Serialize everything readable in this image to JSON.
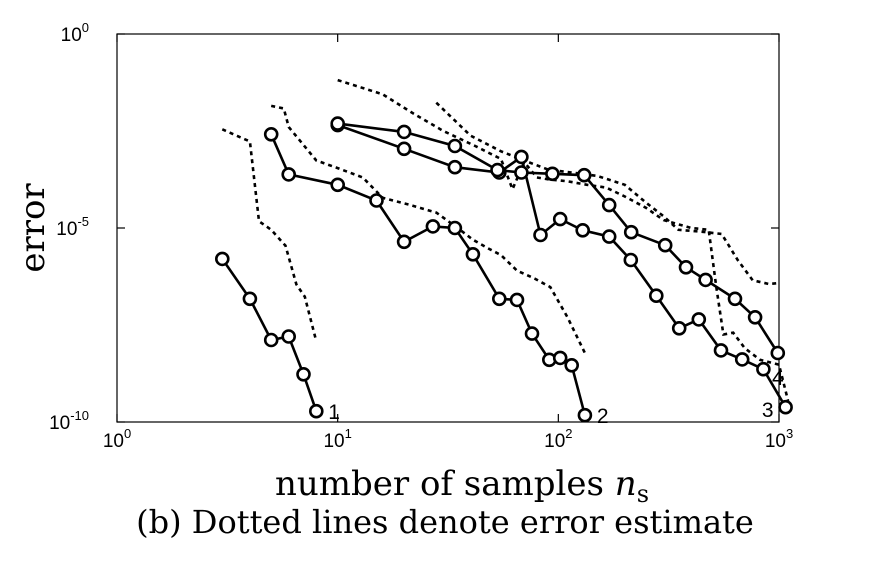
{
  "chart_data": {
    "type": "line",
    "x_scale": "log",
    "y_scale": "log",
    "xlim": [
      1,
      1000
    ],
    "ylim": [
      1e-10,
      1
    ],
    "xlabel": "number of samples",
    "xlabel_symbol": "n",
    "xlabel_subscript": "s",
    "ylabel": "error",
    "caption": "(b) Dotted lines denote error estimate",
    "grid": false,
    "x_ticks": [
      {
        "base": "10",
        "exp": "0",
        "value": 1
      },
      {
        "base": "10",
        "exp": "1",
        "value": 10
      },
      {
        "base": "10",
        "exp": "2",
        "value": 100
      },
      {
        "base": "10",
        "exp": "3",
        "value": 1000
      }
    ],
    "y_ticks": [
      {
        "base": "10",
        "exp": "0",
        "value": 1
      },
      {
        "base": "10",
        "exp": "-5",
        "value": 1e-05
      },
      {
        "base": "10",
        "exp": "-10",
        "value": 1e-10
      }
    ],
    "series": [
      {
        "label": "1",
        "error": {
          "x": [
            3,
            4,
            5,
            6,
            7,
            8
          ],
          "y": [
            1.6e-06,
            1.5e-07,
            1.3e-08,
            1.6e-08,
            1.7e-09,
            1.9e-10
          ]
        },
        "estimate": {
          "x": [
            3,
            4,
            4.4,
            5,
            5.8,
            6.5,
            7.1,
            8
          ],
          "y": [
            0.0035,
            0.0017,
            1.5e-05,
            9e-06,
            3.5e-06,
            3.5e-07,
            1.7e-07,
            1.2e-08
          ]
        }
      },
      {
        "label": "2",
        "error": {
          "x": [
            5,
            6,
            10,
            15,
            20,
            27,
            34,
            41,
            54,
            65,
            76,
            91,
            102,
            115,
            132
          ],
          "y": [
            0.0026,
            0.00024,
            0.00013,
            5.1e-05,
            4.4e-06,
            1.1e-05,
            1e-05,
            2.1e-06,
            1.5e-07,
            1.4e-07,
            1.9e-08,
            4e-09,
            4.5e-09,
            2.9e-09,
            1.5e-10
          ]
        },
        "estimate": {
          "x": [
            5,
            5.7,
            6,
            8,
            10,
            13,
            16,
            21,
            28,
            35,
            41,
            48,
            55,
            65,
            78,
            92,
            110,
            132
          ],
          "y": [
            0.014,
            0.012,
            0.004,
            0.00055,
            0.00035,
            0.0002,
            6e-05,
            4e-05,
            2.5e-05,
            1e-05,
            5e-06,
            3e-06,
            2e-06,
            8e-07,
            5e-07,
            3e-07,
            5e-08,
            6e-09
          ]
        }
      },
      {
        "label": "3",
        "error": {
          "x": [
            10,
            20,
            34,
            54,
            68,
            83,
            102,
            129,
            170,
            213,
            278,
            353,
            433,
            546,
            681,
            850,
            1071
          ],
          "y": [
            0.0045,
            0.0011,
            0.00037,
            0.00027,
            0.00068,
            6.6e-06,
            1.7e-05,
            8.7e-06,
            6e-06,
            1.5e-06,
            1.8e-07,
            2.6e-08,
            4.4e-08,
            7e-09,
            4.1e-09,
            2.3e-09,
            2.4e-10
          ]
        },
        "estimate": {
          "x": [
            10,
            16,
            22,
            30,
            42,
            55,
            62,
            70,
            80,
            90,
            110,
            135,
            165,
            200,
            250,
            300,
            400,
            480,
            520,
            560,
            620,
            700,
            820,
            1000,
            1100
          ],
          "y": [
            0.065,
            0.028,
            0.009,
            0.0032,
            0.0013,
            0.0006,
            0.0001,
            0.0005,
            0.0002,
            0.00018,
            0.00016,
            0.00013,
            0.00011,
            6.5e-05,
            3.3e-05,
            1.6e-05,
            1e-05,
            9e-06,
            3e-07,
            1.8e-08,
            2e-08,
            8e-09,
            4e-09,
            3e-09,
            3.5e-10
          ]
        }
      },
      {
        "label": "4",
        "error": {
          "x": [
            10,
            20,
            34,
            53,
            68,
            94,
            131,
            170,
            214,
            305,
            379,
            465,
            632,
            779,
            988
          ],
          "y": [
            0.0049,
            0.003,
            0.0013,
            0.00031,
            0.00027,
            0.00025,
            0.00023,
            3.9e-05,
            7.8e-06,
            3.6e-06,
            9.7e-07,
            4.6e-07,
            1.5e-07,
            5e-08,
            6e-09
          ]
        },
        "estimate": {
          "x": [
            28,
            40,
            55,
            70,
            90,
            120,
            150,
            200,
            250,
            300,
            350,
            450,
            550,
            650,
            760,
            900,
            1000
          ],
          "y": [
            0.017,
            0.0024,
            0.00095,
            0.00055,
            0.00032,
            0.00026,
            0.00022,
            0.00013,
            4.5e-05,
            2e-05,
            9e-06,
            8e-06,
            7e-06,
            1.5e-06,
            4.5e-07,
            3.6e-07,
            3.8e-07
          ]
        }
      }
    ]
  }
}
